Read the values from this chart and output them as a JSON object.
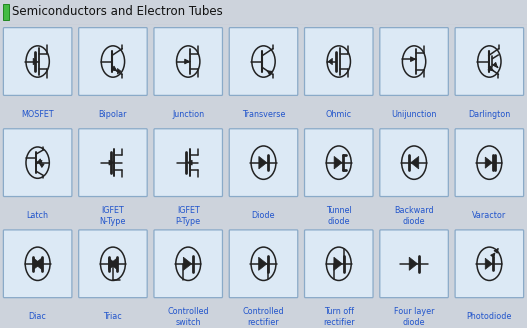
{
  "title": "Semiconductors and Electron Tubes",
  "bg_color": "#cdd3dc",
  "cell_bg_top": "#dce9f5",
  "cell_bg_light": "#e8f0f8",
  "cell_border": "#8aaac8",
  "label_color": "#2255cc",
  "symbol_color": "#222222",
  "title_bar_color": "#dcdcdc",
  "rows": 3,
  "cols": 7,
  "labels": [
    [
      "MOSFET",
      "Bipolar",
      "Junction",
      "Transverse",
      "Ohmic",
      "Unijunction",
      "Darlington"
    ],
    [
      "Latch",
      "IGFET\nN-Type",
      "IGFET\nP-Type",
      "Diode",
      "Tunnel\ndiode",
      "Backward\ndiode",
      "Varactor"
    ],
    [
      "Diac",
      "Triac",
      "Controlled\nswitch",
      "Controlled\nrectifier",
      "Turn off\nrectifier",
      "Four layer\ndiode",
      "Photodiode"
    ]
  ],
  "cell_has_circle": [
    [
      true,
      true,
      true,
      true,
      true,
      true,
      true
    ],
    [
      true,
      false,
      false,
      true,
      true,
      true,
      true
    ],
    [
      true,
      true,
      true,
      true,
      true,
      false,
      true
    ]
  ]
}
